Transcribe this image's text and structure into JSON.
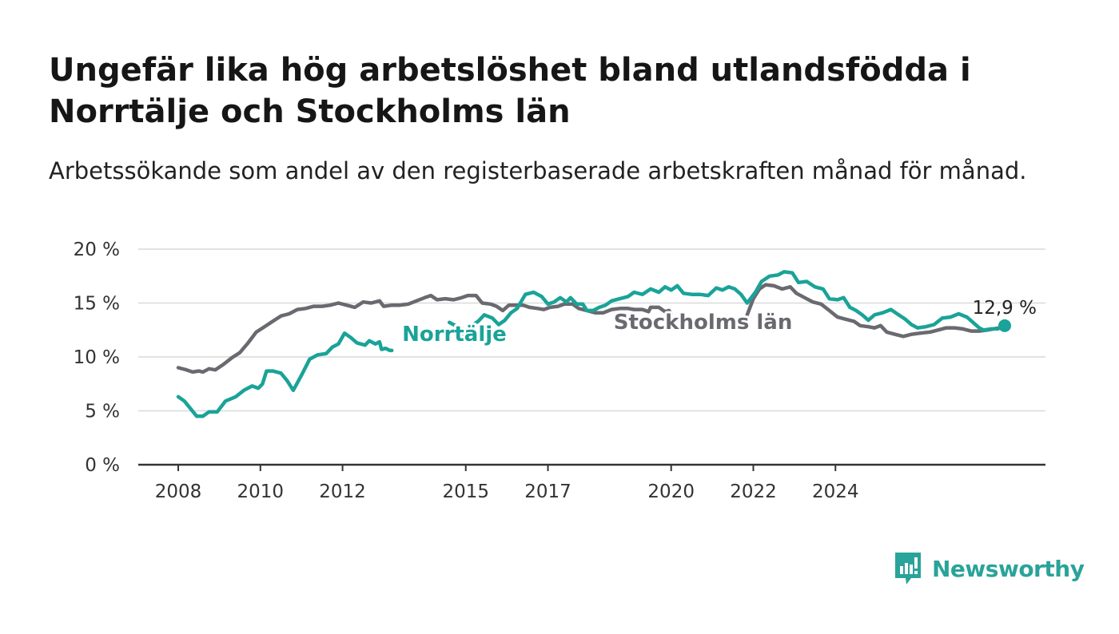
{
  "header": {
    "title": "Ungefär lika hög arbetslöshet bland utlandsfödda i Norrtälje och Stockholms län",
    "subtitle": "Arbetssökande som andel av den registerbaserade arbetskraften månad för månad."
  },
  "logo": {
    "name": "Newsworthy",
    "icon": "newsworthy-chart-icon"
  },
  "colors": {
    "norrtalje": "#1aa398",
    "stockholm": "#6b6970",
    "grid": "#d9d9d9",
    "axis": "#333333"
  },
  "chart_data": {
    "type": "line",
    "title": "Ungefär lika hög arbetslöshet bland utlandsfödda i Norrtälje och Stockholms län",
    "subtitle": "Arbetssökande som andel av den registerbaserade arbetskraften månad för månad.",
    "ylim": [
      0,
      20
    ],
    "yticks": [
      0,
      5,
      10,
      15,
      20
    ],
    "ytick_labels": [
      "0 %",
      "5 %",
      "10 %",
      "15 %",
      "20 %"
    ],
    "xticks": [
      2008,
      2010,
      2012,
      2015,
      2017,
      2020,
      2022,
      2024
    ],
    "xtick_labels": [
      "2008",
      "2010",
      "2012",
      "2015",
      "2017",
      "2020",
      "2022",
      "2024"
    ],
    "grid": true,
    "end_label": "12,9 %",
    "series": [
      {
        "name": "Norrtälje",
        "color": "#1aa398",
        "points": [
          [
            2008.0,
            6.3
          ],
          [
            2008.15,
            5.9
          ],
          [
            2008.3,
            5.2
          ],
          [
            2008.45,
            4.5
          ],
          [
            2008.6,
            4.5
          ],
          [
            2008.75,
            4.9
          ],
          [
            2008.95,
            4.9
          ],
          [
            2009.15,
            5.9
          ],
          [
            2009.4,
            6.3
          ],
          [
            2009.6,
            6.9
          ],
          [
            2009.8,
            7.3
          ],
          [
            2009.95,
            7.1
          ],
          [
            2010.05,
            7.5
          ],
          [
            2010.15,
            8.7
          ],
          [
            2010.3,
            8.7
          ],
          [
            2010.5,
            8.5
          ],
          [
            2010.65,
            7.8
          ],
          [
            2010.8,
            6.9
          ],
          [
            2011.0,
            8.3
          ],
          [
            2011.2,
            9.8
          ],
          [
            2011.4,
            10.2
          ],
          [
            2011.6,
            10.3
          ],
          [
            2011.75,
            10.9
          ],
          [
            2011.9,
            11.2
          ],
          [
            2012.05,
            12.2
          ],
          [
            2012.2,
            11.8
          ],
          [
            2012.35,
            11.3
          ],
          [
            2012.55,
            11.1
          ],
          [
            2012.65,
            11.5
          ],
          [
            2012.8,
            11.2
          ],
          [
            2012.9,
            11.4
          ],
          [
            2012.95,
            10.7
          ],
          [
            2013.05,
            10.8
          ],
          [
            2013.15,
            10.6
          ],
          [
            2013.2,
            10.6
          ],
          [
            2013.3,
            null
          ],
          [
            2014.6,
            13.2
          ],
          [
            2014.8,
            12.8
          ],
          [
            2014.9,
            12.0
          ],
          [
            2015.1,
            12.8
          ],
          [
            2015.3,
            13.3
          ],
          [
            2015.45,
            13.9
          ],
          [
            2015.65,
            13.6
          ],
          [
            2015.8,
            13.0
          ],
          [
            2015.95,
            13.4
          ],
          [
            2016.1,
            14.1
          ],
          [
            2016.25,
            14.5
          ],
          [
            2016.45,
            15.8
          ],
          [
            2016.65,
            16.0
          ],
          [
            2016.85,
            15.6
          ],
          [
            2017.0,
            14.9
          ],
          [
            2017.15,
            15.1
          ],
          [
            2017.3,
            15.5
          ],
          [
            2017.45,
            15.1
          ],
          [
            2017.55,
            15.5
          ],
          [
            2017.7,
            14.9
          ],
          [
            2017.85,
            14.9
          ],
          [
            2017.95,
            14.3
          ],
          [
            2018.1,
            14.3
          ],
          [
            2018.25,
            14.6
          ],
          [
            2018.4,
            14.8
          ],
          [
            2018.55,
            15.2
          ],
          [
            2018.75,
            15.4
          ],
          [
            2018.95,
            15.6
          ],
          [
            2019.1,
            16.0
          ],
          [
            2019.3,
            15.8
          ],
          [
            2019.5,
            16.3
          ],
          [
            2019.7,
            16.0
          ],
          [
            2019.85,
            16.5
          ],
          [
            2020.0,
            16.2
          ],
          [
            2020.15,
            16.6
          ],
          [
            2020.3,
            15.9
          ],
          [
            2020.5,
            15.8
          ],
          [
            2020.7,
            15.8
          ],
          [
            2020.9,
            15.7
          ],
          [
            2021.1,
            16.4
          ],
          [
            2021.25,
            16.2
          ],
          [
            2021.4,
            16.5
          ],
          [
            2021.55,
            16.3
          ],
          [
            2021.7,
            15.8
          ],
          [
            2021.85,
            15.0
          ],
          [
            2022.05,
            16.0
          ],
          [
            2022.2,
            17.0
          ],
          [
            2022.4,
            17.5
          ],
          [
            2022.6,
            17.6
          ],
          [
            2022.75,
            17.9
          ],
          [
            2022.95,
            17.8
          ],
          [
            2023.1,
            16.9
          ],
          [
            2023.3,
            17.0
          ],
          [
            2023.5,
            16.5
          ],
          [
            2023.7,
            16.3
          ],
          [
            2023.85,
            15.4
          ],
          [
            2024.05,
            15.3
          ],
          [
            2024.2,
            15.5
          ],
          [
            2024.35,
            14.6
          ],
          [
            2024.5,
            14.3
          ],
          [
            2024.65,
            13.9
          ],
          [
            2024.8,
            13.4
          ],
          [
            2024.95,
            13.9
          ],
          [
            2025.15,
            14.1
          ],
          [
            2025.35,
            14.4
          ],
          [
            2025.5,
            14.0
          ],
          [
            2025.7,
            13.5
          ],
          [
            2025.85,
            13.0
          ],
          [
            2026.0,
            12.7
          ],
          [
            2026.2,
            12.8
          ],
          [
            2026.4,
            13.0
          ],
          [
            2026.6,
            13.6
          ],
          [
            2026.8,
            13.7
          ],
          [
            2027.0,
            14.0
          ],
          [
            2027.2,
            13.7
          ],
          [
            2027.35,
            13.2
          ],
          [
            2027.5,
            12.7
          ],
          [
            2027.6,
            12.5
          ],
          [
            2027.8,
            12.6
          ],
          [
            2027.95,
            12.6
          ],
          [
            2028.05,
            12.8
          ],
          [
            2028.12,
            12.9
          ]
        ]
      },
      {
        "name": "Stockholms län",
        "color": "#6b6970",
        "points": [
          [
            2008.0,
            9.0
          ],
          [
            2008.2,
            8.8
          ],
          [
            2008.35,
            8.6
          ],
          [
            2008.5,
            8.7
          ],
          [
            2008.6,
            8.6
          ],
          [
            2008.75,
            8.9
          ],
          [
            2008.9,
            8.8
          ],
          [
            2009.1,
            9.3
          ],
          [
            2009.3,
            9.9
          ],
          [
            2009.5,
            10.4
          ],
          [
            2009.7,
            11.3
          ],
          [
            2009.9,
            12.3
          ],
          [
            2010.1,
            12.8
          ],
          [
            2010.3,
            13.3
          ],
          [
            2010.5,
            13.8
          ],
          [
            2010.7,
            14.0
          ],
          [
            2010.9,
            14.4
          ],
          [
            2011.1,
            14.5
          ],
          [
            2011.3,
            14.7
          ],
          [
            2011.5,
            14.7
          ],
          [
            2011.7,
            14.8
          ],
          [
            2011.9,
            15.0
          ],
          [
            2012.1,
            14.8
          ],
          [
            2012.3,
            14.6
          ],
          [
            2012.5,
            15.1
          ],
          [
            2012.7,
            15.0
          ],
          [
            2012.9,
            15.2
          ],
          [
            2013.0,
            14.7
          ],
          [
            2013.2,
            14.8
          ],
          [
            2013.4,
            14.8
          ],
          [
            2013.6,
            14.9
          ],
          [
            2013.8,
            15.2
          ],
          [
            2014.0,
            15.5
          ],
          [
            2014.15,
            15.7
          ],
          [
            2014.3,
            15.3
          ],
          [
            2014.5,
            15.4
          ],
          [
            2014.7,
            15.3
          ],
          [
            2014.9,
            15.5
          ],
          [
            2015.05,
            15.7
          ],
          [
            2015.25,
            15.7
          ],
          [
            2015.4,
            15.0
          ],
          [
            2015.6,
            14.9
          ],
          [
            2015.75,
            14.7
          ],
          [
            2015.9,
            14.3
          ],
          [
            2016.05,
            14.8
          ],
          [
            2016.2,
            14.8
          ],
          [
            2016.4,
            14.8
          ],
          [
            2016.55,
            14.6
          ],
          [
            2016.75,
            14.5
          ],
          [
            2016.9,
            14.4
          ],
          [
            2017.05,
            14.6
          ],
          [
            2017.25,
            14.7
          ],
          [
            2017.4,
            14.9
          ],
          [
            2017.6,
            14.9
          ],
          [
            2017.75,
            14.5
          ],
          [
            2017.95,
            14.3
          ],
          [
            2018.15,
            14.1
          ],
          [
            2018.35,
            14.1
          ],
          [
            2018.55,
            14.4
          ],
          [
            2018.75,
            14.5
          ],
          [
            2018.95,
            14.5
          ],
          [
            2019.1,
            14.4
          ],
          [
            2019.3,
            14.4
          ],
          [
            2019.45,
            14.2
          ],
          [
            2019.5,
            14.6
          ],
          [
            2019.7,
            14.6
          ],
          [
            2019.85,
            14.2
          ],
          [
            2019.95,
            14.3
          ],
          [
            2020.0,
            14.0
          ],
          [
            2020.05,
            null
          ],
          [
            2021.85,
            13.9
          ],
          [
            2022.0,
            15.4
          ],
          [
            2022.15,
            16.3
          ],
          [
            2022.3,
            16.7
          ],
          [
            2022.5,
            16.6
          ],
          [
            2022.7,
            16.3
          ],
          [
            2022.9,
            16.5
          ],
          [
            2023.05,
            15.9
          ],
          [
            2023.25,
            15.5
          ],
          [
            2023.45,
            15.1
          ],
          [
            2023.65,
            14.9
          ],
          [
            2023.85,
            14.3
          ],
          [
            2024.05,
            13.7
          ],
          [
            2024.25,
            13.5
          ],
          [
            2024.45,
            13.3
          ],
          [
            2024.6,
            12.9
          ],
          [
            2024.8,
            12.8
          ],
          [
            2024.95,
            12.7
          ],
          [
            2025.1,
            12.9
          ],
          [
            2025.25,
            12.3
          ],
          [
            2025.45,
            12.1
          ],
          [
            2025.65,
            11.9
          ],
          [
            2025.85,
            12.1
          ],
          [
            2026.05,
            12.2
          ],
          [
            2026.3,
            12.3
          ],
          [
            2026.5,
            12.5
          ],
          [
            2026.7,
            12.7
          ],
          [
            2026.9,
            12.7
          ],
          [
            2027.1,
            12.6
          ],
          [
            2027.3,
            12.4
          ],
          [
            2027.5,
            12.4
          ],
          [
            2027.7,
            12.5
          ],
          [
            2027.85,
            12.6
          ],
          [
            2028.0,
            12.7
          ],
          [
            2028.12,
            12.7
          ]
        ]
      }
    ],
    "annotations": [
      {
        "series": "Norrtälje",
        "text": "Norrtälje",
        "at": [
          2013.45,
          11.5
        ]
      },
      {
        "series": "Stockholms län",
        "text": "Stockholms län",
        "at": [
          2018.6,
          12.6
        ]
      }
    ]
  }
}
